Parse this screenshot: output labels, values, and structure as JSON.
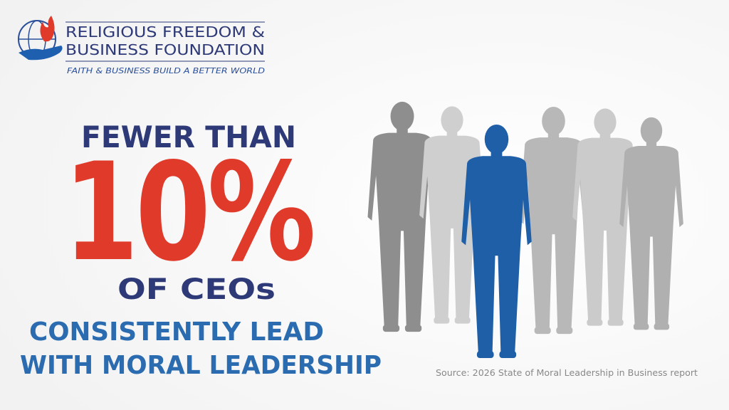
{
  "logo": {
    "line1": "RELIGIOUS FREEDOM &",
    "line2": "BUSINESS FOUNDATION",
    "tagline": "FAITH & BUSINESS BUILD A BETTER WORLD"
  },
  "headline": {
    "lead": "FEWER THAN",
    "figure": "10%",
    "subject": "OF CEOs",
    "line1": "CONSISTENTLY LEAD",
    "line2": "WITH MORAL LEADERSHIP"
  },
  "source": "Source: 2026 State of Moral Leadership in Business report"
}
